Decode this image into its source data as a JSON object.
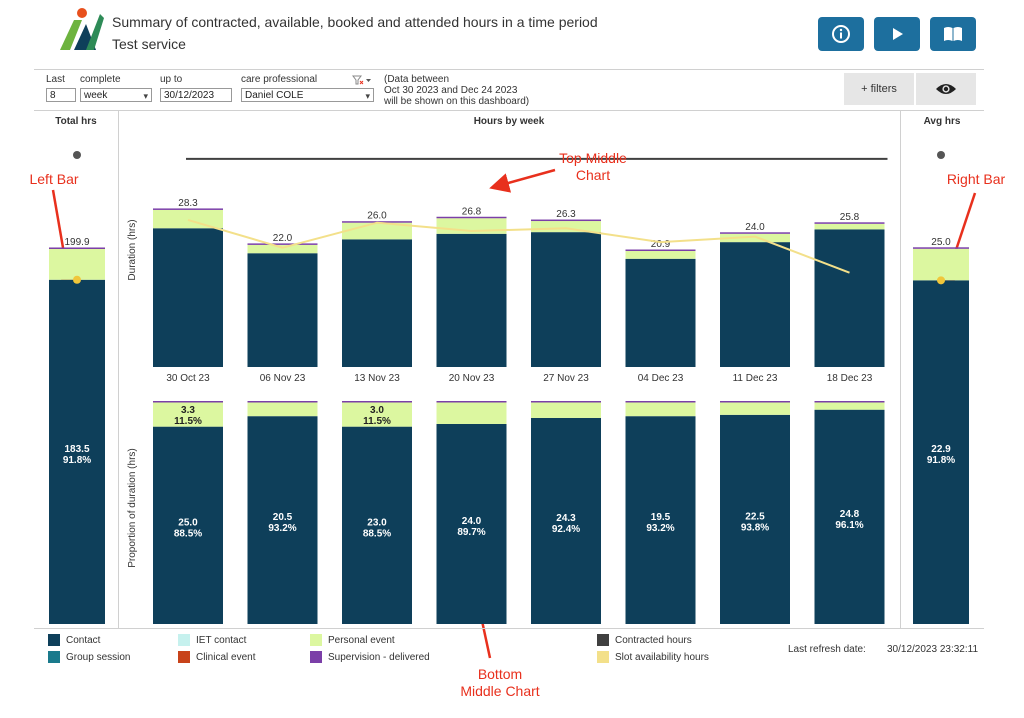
{
  "header": {
    "title": "Summary of contracted, available, booked and attended hours in a time period",
    "subtitle": "Test service",
    "buttons": [
      {
        "name": "info-button",
        "icon": "info-icon"
      },
      {
        "name": "play-button",
        "icon": "play-icon"
      },
      {
        "name": "book-button",
        "icon": "book-icon"
      }
    ]
  },
  "filters": {
    "last_label": "Last",
    "last_value": "8",
    "complete_label": "complete",
    "period_value": "week",
    "upto_label": "up to",
    "upto_value": "30/12/2023",
    "care_label": "care professional",
    "care_value": "Daniel COLE",
    "note_line1": "(Data between",
    "note_line2": "Oct 30 2023 and Dec 24 2023",
    "note_line3": "will be shown on this dashboard)",
    "more_filters": "+ filters"
  },
  "columns": {
    "left": "Total hrs",
    "middle": "Hours by week",
    "right": "Avg hrs"
  },
  "annotations": {
    "left_bar": "Left Bar",
    "right_bar": "Right Bar",
    "top_middle_line1": "Top Middle",
    "top_middle_line2": "Chart",
    "bottom_middle_line1": "Bottom",
    "bottom_middle_line2": "Middle Chart"
  },
  "legend": [
    {
      "label": "Contact",
      "color": "#0e3f5a"
    },
    {
      "label": "Group session",
      "color": "#1a7a8c"
    },
    {
      "label": "IET contact",
      "color": "#c6f1ee"
    },
    {
      "label": "Clinical event",
      "color": "#c8431a"
    },
    {
      "label": "Personal event",
      "color": "#dcf7a0"
    },
    {
      "label": "Supervision - delivered",
      "color": "#7b3fa8"
    },
    {
      "label": "Contracted hours",
      "color": "#404040"
    },
    {
      "label": "Slot availability hours",
      "color": "#f3e08a"
    }
  ],
  "refresh": {
    "label": "Last refresh date:",
    "value": "30/12/2023 23:32:11"
  },
  "colors": {
    "contact": "#0e3f5a",
    "personal": "#dcf7a0",
    "supervision": "#7b3fa8",
    "slot_line": "#f3e08a",
    "annotation": "#e8301d",
    "header_button": "#1d6f9e"
  },
  "chart_data": [
    {
      "name": "total",
      "type": "bar",
      "title": "Total hrs",
      "categories": [
        "Total"
      ],
      "series": [
        {
          "name": "Contact",
          "values": [
            183.5
          ]
        },
        {
          "name": "Personal event",
          "values": [
            16.4
          ]
        }
      ],
      "totals": [
        199.9
      ],
      "total_labels": [
        "199.9"
      ],
      "contact_labels": [
        "183.5"
      ],
      "contact_pct_labels": [
        "91.8%"
      ],
      "slot_availability": [
        183.5
      ],
      "contracted_marker": [
        250
      ],
      "ylim": [
        0,
        250
      ]
    },
    {
      "name": "weekly",
      "type": "bar",
      "title": "Hours by week",
      "ylabel": "Duration (hrs)",
      "categories": [
        "30 Oct 23",
        "06 Nov 23",
        "13 Nov 23",
        "20 Nov 23",
        "27 Nov 23",
        "04 Dec 23",
        "11 Dec 23",
        "18 Dec 23"
      ],
      "series": [
        {
          "name": "Contact",
          "values": [
            25.0,
            20.5,
            23.0,
            24.0,
            24.3,
            19.5,
            22.5,
            24.8
          ]
        },
        {
          "name": "Personal event",
          "values": [
            3.3,
            1.5,
            3.0,
            2.8,
            2.0,
            1.4,
            1.5,
            1.0
          ]
        }
      ],
      "totals": [
        28.3,
        22.0,
        26.0,
        26.8,
        26.3,
        20.9,
        24.0,
        25.8
      ],
      "total_labels": [
        "28.3",
        "22.0",
        "26.0",
        "26.8",
        "26.3",
        "20.9",
        "24.0",
        "25.8"
      ],
      "slot_availability": [
        26.5,
        21.5,
        26.0,
        24.5,
        25.0,
        22.5,
        23.5,
        17.0
      ],
      "contracted_hours": [
        37.5,
        37.5,
        37.5,
        37.5,
        37.5,
        37.5,
        37.5,
        37.5
      ],
      "ylim": [
        0,
        40
      ]
    },
    {
      "name": "weekly-proportion",
      "type": "bar",
      "title": "Proportion of duration",
      "ylabel": "Proportion of duration (hrs)",
      "categories": [
        "30 Oct 23",
        "06 Nov 23",
        "13 Nov 23",
        "20 Nov 23",
        "27 Nov 23",
        "04 Dec 23",
        "11 Dec 23",
        "18 Dec 23"
      ],
      "contact_pct": [
        88.5,
        93.2,
        88.5,
        89.7,
        92.4,
        93.2,
        93.8,
        96.1
      ],
      "contact_value_labels": [
        "25.0",
        "20.5",
        "23.0",
        "24.0",
        "24.3",
        "19.5",
        "22.5",
        "24.8"
      ],
      "contact_pct_labels": [
        "88.5%",
        "93.2%",
        "88.5%",
        "89.7%",
        "92.4%",
        "93.2%",
        "93.8%",
        "96.1%"
      ],
      "personal_value_labels": [
        "3.3",
        "",
        "3.0",
        "",
        "",
        "",
        "",
        ""
      ],
      "personal_pct_labels": [
        "11.5%",
        "",
        "11.5%",
        "",
        "",
        "",
        "",
        ""
      ],
      "ylim": [
        0,
        100
      ]
    },
    {
      "name": "average",
      "type": "bar",
      "title": "Avg hrs",
      "categories": [
        "Average"
      ],
      "series": [
        {
          "name": "Contact",
          "values": [
            22.9
          ]
        },
        {
          "name": "Personal event",
          "values": [
            2.1
          ]
        }
      ],
      "totals": [
        25.0
      ],
      "total_labels": [
        "25.0"
      ],
      "contact_labels": [
        "22.9"
      ],
      "contact_pct_labels": [
        "91.8%"
      ],
      "slot_availability": [
        22.9
      ],
      "contracted_marker": [
        31.25
      ],
      "ylim": [
        0,
        31.25
      ]
    }
  ]
}
